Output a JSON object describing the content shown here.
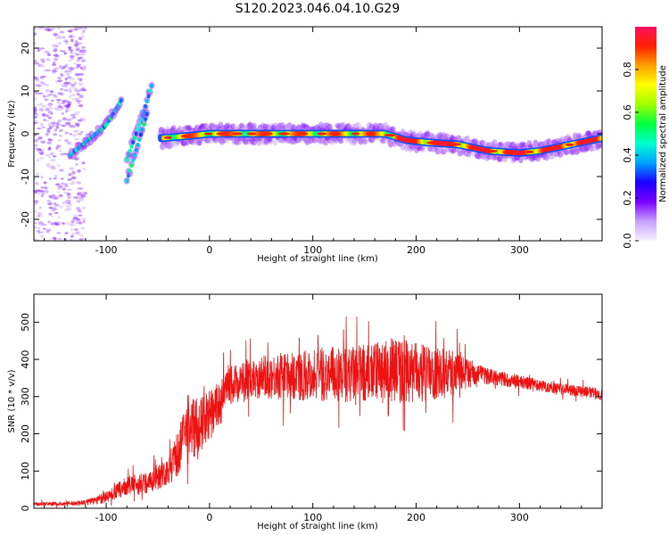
{
  "title": "S120.2023.046.04.10.G29",
  "colors": {
    "snr_line": "#ee1111",
    "axes": "#000000"
  },
  "chart_data": [
    {
      "type": "heatmap",
      "xlabel": "Height of straight line (km)",
      "ylabel": "Frequency (Hz)",
      "xlim": [
        -170,
        380
      ],
      "ylim": [
        -25,
        25
      ],
      "xticks": [
        -100,
        0,
        100,
        200,
        300
      ],
      "yticks": [
        -20,
        -10,
        0,
        10,
        20
      ],
      "colorbar": {
        "label": "Normalized spectral amplitude",
        "range": [
          0,
          1
        ],
        "ticks": [
          0.0,
          0.2,
          0.4,
          0.6,
          0.8
        ],
        "tick_labels": [
          "0.0",
          "0.2",
          "0.4",
          "0.6",
          "0.8"
        ],
        "colormap": [
          "#f5f0ff",
          "#c9a0ff",
          "#7a00ff",
          "#1a00ff",
          "#00a0ff",
          "#00ffd0",
          "#00ff40",
          "#a0ff00",
          "#ffff00",
          "#ffa000",
          "#ff2000",
          "#ff1060"
        ]
      },
      "main_track": {
        "x": [
          -45,
          -20,
          0,
          20,
          50,
          80,
          110,
          140,
          170,
          190,
          210,
          240,
          270,
          300,
          320,
          350,
          380
        ],
        "y": [
          -1,
          -0.5,
          0,
          0,
          0,
          0,
          0,
          0,
          0,
          -1.5,
          -2,
          -2.5,
          -4,
          -4.5,
          -4,
          -2.5,
          -1
        ]
      },
      "secondary_tracks": [
        {
          "x": [
            -135,
            -120,
            -100,
            -85
          ],
          "y": [
            -5,
            -2,
            2,
            8
          ]
        },
        {
          "x": [
            -80,
            -65,
            -55
          ],
          "y": [
            -6,
            4,
            12
          ]
        },
        {
          "x": [
            -80,
            -70,
            -60
          ],
          "y": [
            -11,
            -3,
            5
          ]
        }
      ]
    },
    {
      "type": "line",
      "xlabel": "Height of straight line (km)",
      "ylabel": "SNR (10 * v/v)",
      "xlim": [
        -170,
        380
      ],
      "ylim": [
        0,
        575
      ],
      "xticks": [
        -100,
        0,
        100,
        200,
        300
      ],
      "yticks": [
        0,
        100,
        200,
        300,
        400,
        500
      ],
      "series": [
        {
          "envelope_x": [
            -170,
            -140,
            -120,
            -100,
            -80,
            -60,
            -40,
            -30,
            -20,
            -10,
            0,
            10,
            20,
            40,
            60,
            80,
            100,
            120,
            140,
            160,
            180,
            200,
            220,
            240,
            260,
            280,
            300,
            320,
            340,
            360,
            380
          ],
          "envelope_mean": [
            12,
            12,
            15,
            30,
            60,
            70,
            100,
            150,
            230,
            210,
            250,
            280,
            330,
            350,
            355,
            355,
            360,
            360,
            360,
            365,
            370,
            365,
            360,
            365,
            360,
            350,
            340,
            330,
            320,
            315,
            305
          ],
          "envelope_spread": [
            5,
            5,
            8,
            15,
            25,
            30,
            40,
            60,
            90,
            80,
            70,
            60,
            50,
            55,
            60,
            65,
            70,
            75,
            75,
            80,
            90,
            80,
            70,
            60,
            25,
            20,
            18,
            15,
            15,
            15,
            15
          ]
        }
      ]
    }
  ]
}
